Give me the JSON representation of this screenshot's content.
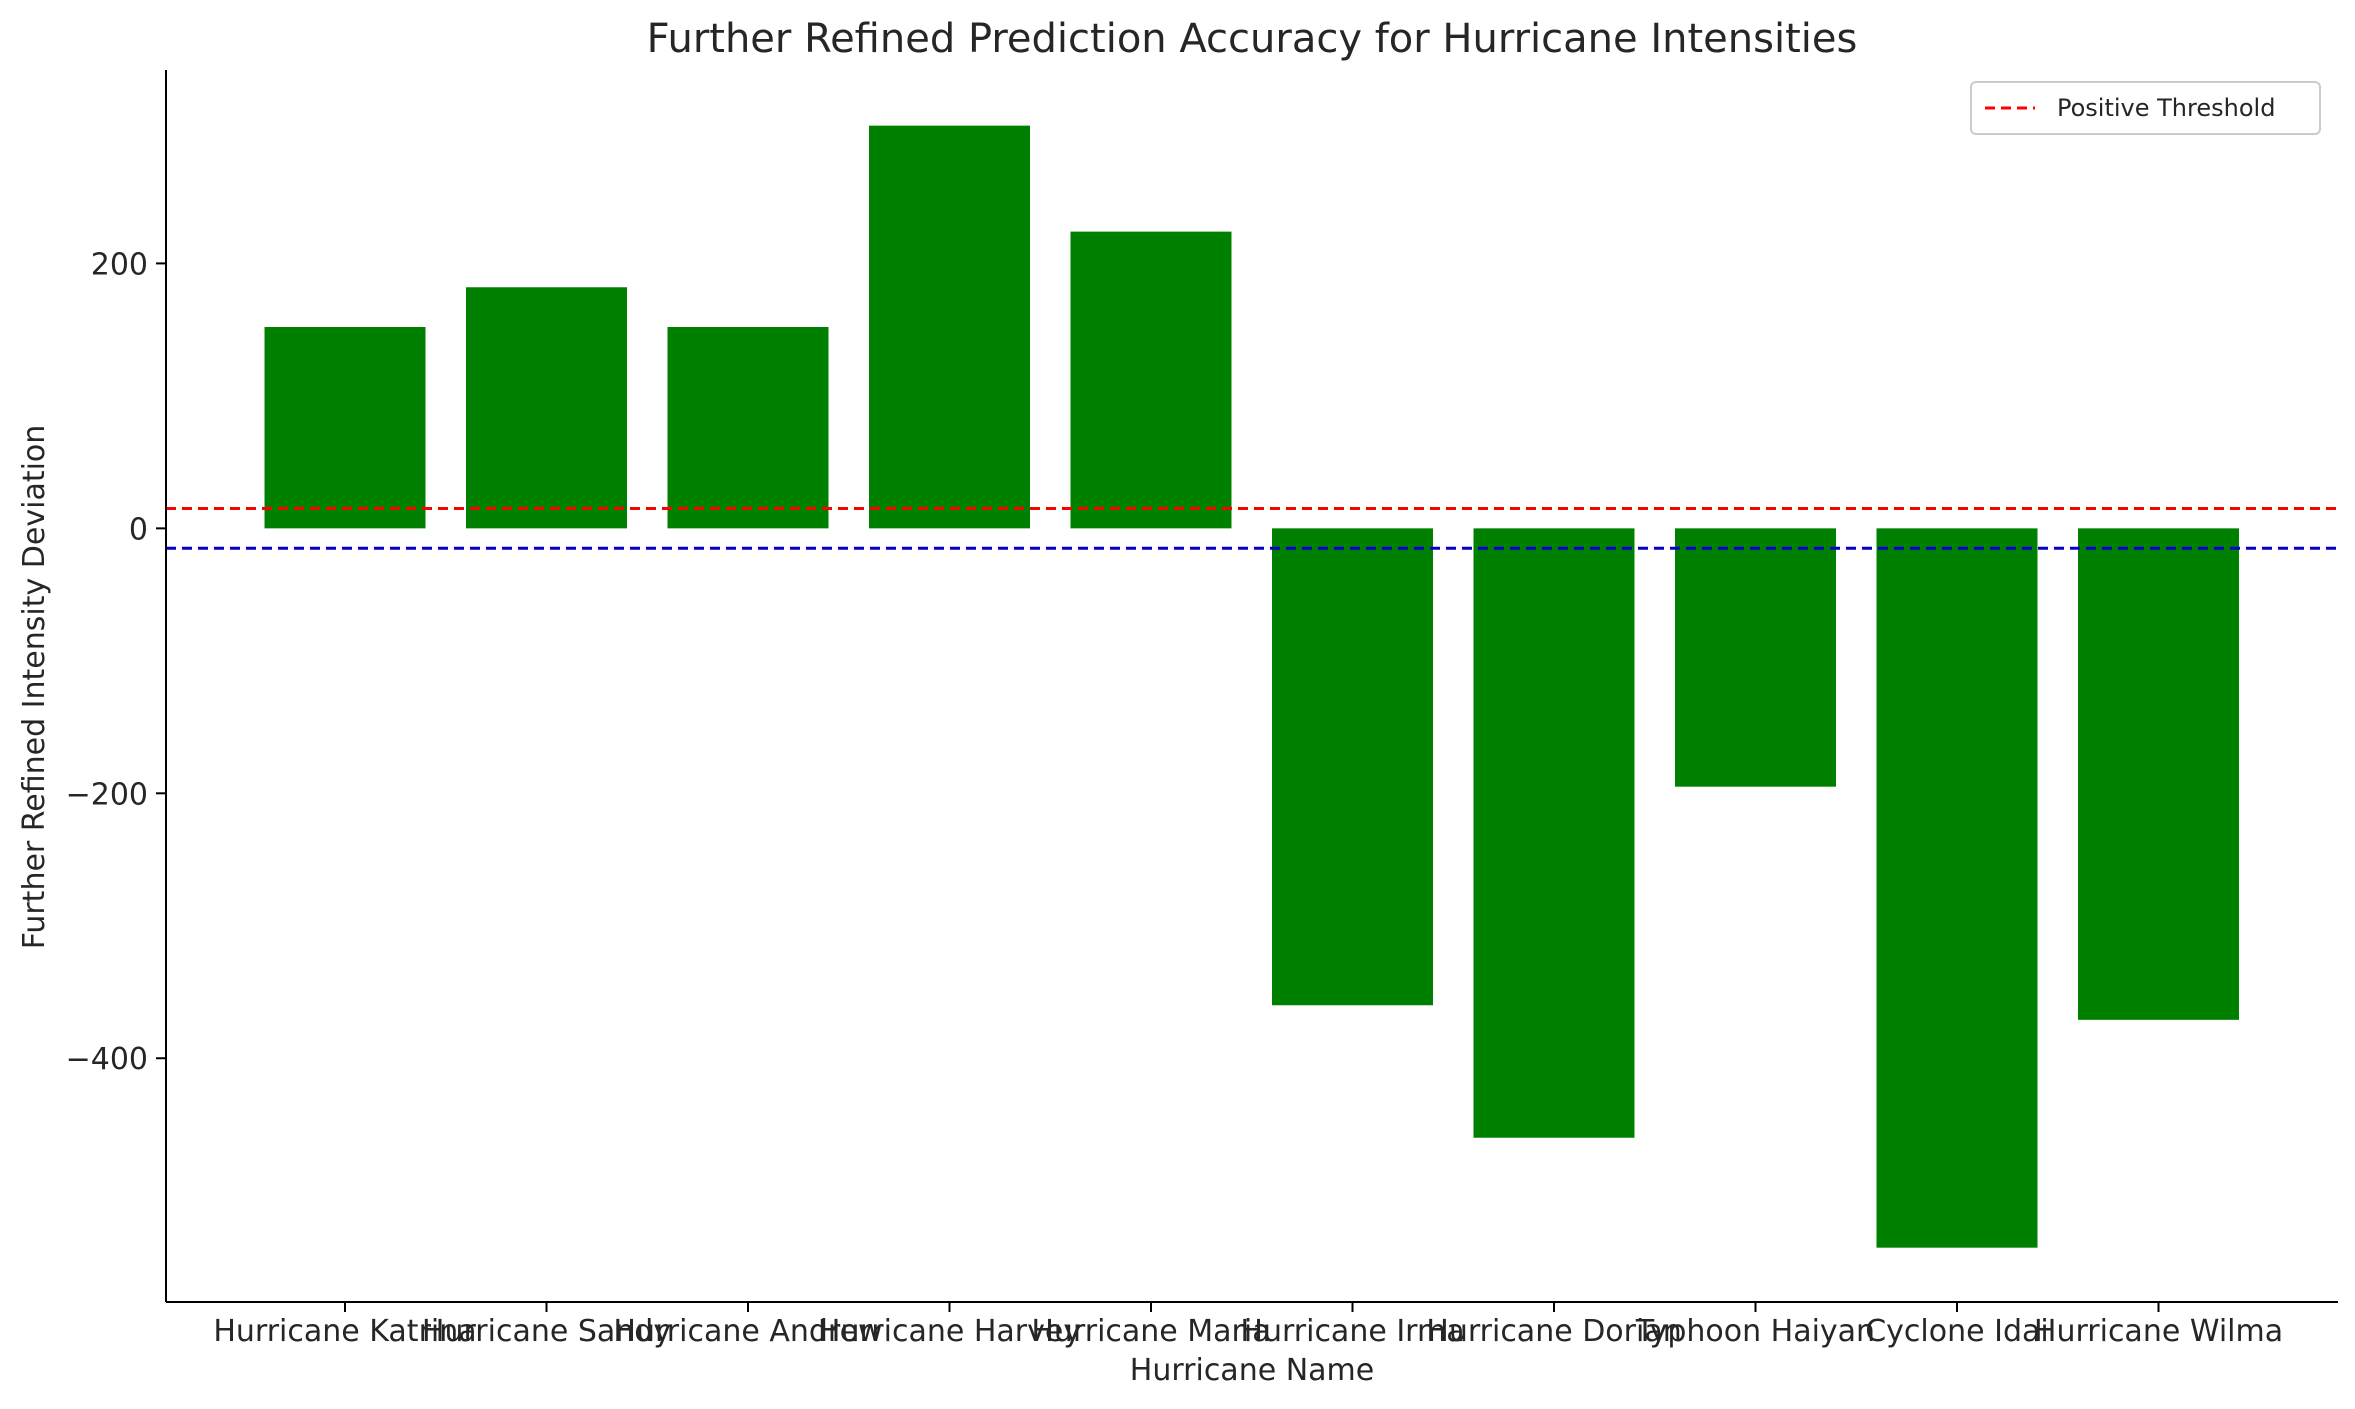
{
  "chart_data": {
    "type": "bar",
    "title": "Further Refined Prediction Accuracy for Hurricane Intensities",
    "xlabel": "Hurricane Name",
    "ylabel": "Further Refined Intensity Deviation",
    "categories": [
      "Hurricane Katrina",
      "Hurricane Sandy",
      "Hurricane Andrew",
      "Hurricane Harvey",
      "Hurricane Maria",
      "Hurricane Irma",
      "Hurricane Dorian",
      "Typhoon Haiyan",
      "Cyclone Idai",
      "Hurricane Wilma"
    ],
    "values": [
      152,
      182,
      152,
      304,
      224,
      -360,
      -460,
      -195,
      -543,
      -371
    ],
    "ylim": [
      -584,
      346
    ],
    "yticks": [
      -400,
      -200,
      0,
      200
    ],
    "bar_color": "#008000",
    "thresholds": [
      {
        "name": "Positive Threshold",
        "value": 15,
        "color": "#ff0000",
        "style": "dashed"
      },
      {
        "value": -15,
        "color": "#0000cd",
        "style": "dashed"
      }
    ],
    "legend": {
      "position": "top-right",
      "entries": [
        "Positive Threshold"
      ]
    },
    "grid": false
  }
}
